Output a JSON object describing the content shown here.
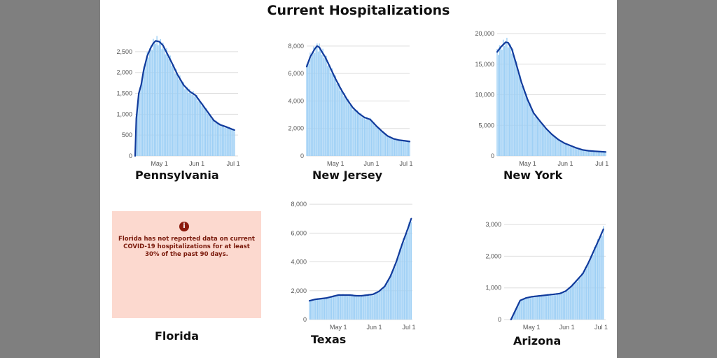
{
  "page": {
    "title": "Current Hospitalizations"
  },
  "notice": {
    "icon": "info-icon",
    "icon_glyph": "i",
    "text": "Florida has not reported data on current COVID-19 hospitalizations for at least 30% of the past 90 days.",
    "state": "Florida",
    "background": "#fcd9cf",
    "text_color": "#7a1a0c"
  },
  "colors": {
    "bar": "#9fd0f5",
    "line": "#113b9c",
    "grid": "#dddddd"
  },
  "chart_data": [
    {
      "type": "bar",
      "state": "Pennsylvania",
      "x_ticks": [
        {
          "day": 0,
          "label": "May 1"
        },
        {
          "day": 31,
          "label": "Jun 1"
        },
        {
          "day": 61,
          "label": "Jul 1"
        }
      ],
      "xlim": [
        -20,
        65
      ],
      "ylim": [
        0,
        2800
      ],
      "y_ticks": [
        0,
        500,
        1000,
        1500,
        2000,
        2500
      ],
      "tick_labels": [
        "0",
        "500",
        "1,000",
        "1,500",
        "2,000",
        "2,500"
      ],
      "series": [
        {
          "points": [
            [
              -20,
              0
            ],
            [
              -19,
              900
            ],
            [
              -17,
              1500
            ],
            [
              -15,
              1700
            ],
            [
              -13,
              2050
            ],
            [
              -10,
              2400
            ],
            [
              -7,
              2600
            ],
            [
              -5,
              2700
            ],
            [
              -3,
              2760
            ],
            [
              0,
              2740
            ],
            [
              3,
              2650
            ],
            [
              6,
              2480
            ],
            [
              10,
              2250
            ],
            [
              15,
              1950
            ],
            [
              20,
              1700
            ],
            [
              25,
              1550
            ],
            [
              30,
              1450
            ],
            [
              35,
              1250
            ],
            [
              40,
              1050
            ],
            [
              45,
              850
            ],
            [
              50,
              750
            ],
            [
              55,
              700
            ],
            [
              60,
              640
            ],
            [
              62,
              620
            ]
          ]
        }
      ]
    },
    {
      "type": "bar",
      "state": "New Jersey",
      "x_ticks": [
        {
          "day": 0,
          "label": "May 1"
        },
        {
          "day": 31,
          "label": "Jun 1"
        },
        {
          "day": 61,
          "label": "Jul 1"
        }
      ],
      "xlim": [
        -25,
        64
      ],
      "ylim": [
        0,
        8500
      ],
      "y_ticks": [
        0,
        2000,
        4000,
        6000,
        8000
      ],
      "tick_labels": [
        "0",
        "2,000",
        "4,000",
        "6,000",
        "8,000"
      ],
      "series": [
        {
          "points": [
            [
              -25,
              6500
            ],
            [
              -22,
              7200
            ],
            [
              -18,
              7800
            ],
            [
              -16,
              8000
            ],
            [
              -14,
              7900
            ],
            [
              -12,
              7600
            ],
            [
              -9,
              7200
            ],
            [
              -5,
              6500
            ],
            [
              0,
              5600
            ],
            [
              5,
              4800
            ],
            [
              10,
              4100
            ],
            [
              15,
              3500
            ],
            [
              20,
              3100
            ],
            [
              25,
              2800
            ],
            [
              30,
              2650
            ],
            [
              35,
              2200
            ],
            [
              40,
              1800
            ],
            [
              45,
              1450
            ],
            [
              50,
              1250
            ],
            [
              55,
              1150
            ],
            [
              60,
              1100
            ],
            [
              64,
              1050
            ]
          ]
        }
      ]
    },
    {
      "type": "bar",
      "state": "New York",
      "x_ticks": [
        {
          "day": 0,
          "label": "May 1"
        },
        {
          "day": 31,
          "label": "Jun 1"
        },
        {
          "day": 61,
          "label": "Jul 1"
        }
      ],
      "xlim": [
        -25,
        64
      ],
      "ylim": [
        0,
        20000
      ],
      "y_ticks": [
        0,
        5000,
        10000,
        15000,
        20000
      ],
      "tick_labels": [
        "0",
        "5,000",
        "10,000",
        "15,000",
        "20,000"
      ],
      "series": [
        {
          "points": [
            [
              -25,
              17000
            ],
            [
              -22,
              17800
            ],
            [
              -18,
              18600
            ],
            [
              -16,
              18500
            ],
            [
              -13,
              17500
            ],
            [
              -10,
              15500
            ],
            [
              -5,
              12000
            ],
            [
              0,
              9200
            ],
            [
              5,
              7000
            ],
            [
              10,
              5700
            ],
            [
              15,
              4500
            ],
            [
              20,
              3500
            ],
            [
              25,
              2700
            ],
            [
              30,
              2100
            ],
            [
              35,
              1700
            ],
            [
              40,
              1300
            ],
            [
              45,
              1000
            ],
            [
              50,
              850
            ],
            [
              55,
              760
            ],
            [
              60,
              700
            ],
            [
              64,
              650
            ]
          ]
        }
      ]
    },
    {
      "type": "bar",
      "state": "Texas",
      "x_ticks": [
        {
          "day": 0,
          "label": "May 1"
        },
        {
          "day": 31,
          "label": "Jun 1"
        },
        {
          "day": 61,
          "label": "Jul 1"
        }
      ],
      "xlim": [
        -25,
        64
      ],
      "ylim": [
        0,
        8200
      ],
      "y_ticks": [
        0,
        2000,
        4000,
        6000,
        8000
      ],
      "tick_labels": [
        "0",
        "2,000",
        "4,000",
        "6,000",
        "8,000"
      ],
      "series": [
        {
          "points": [
            [
              -25,
              1300
            ],
            [
              -20,
              1400
            ],
            [
              -15,
              1450
            ],
            [
              -10,
              1500
            ],
            [
              -5,
              1600
            ],
            [
              0,
              1700
            ],
            [
              5,
              1700
            ],
            [
              10,
              1700
            ],
            [
              15,
              1650
            ],
            [
              20,
              1650
            ],
            [
              25,
              1700
            ],
            [
              30,
              1750
            ],
            [
              35,
              1950
            ],
            [
              40,
              2300
            ],
            [
              45,
              3000
            ],
            [
              50,
              4000
            ],
            [
              55,
              5200
            ],
            [
              60,
              6300
            ],
            [
              63,
              7000
            ]
          ]
        }
      ]
    },
    {
      "type": "bar",
      "state": "Arizona",
      "x_ticks": [
        {
          "day": 0,
          "label": "May 1"
        },
        {
          "day": 31,
          "label": "Jun 1"
        },
        {
          "day": 61,
          "label": "Jul 1"
        }
      ],
      "xlim": [
        -24,
        65
      ],
      "ylim": [
        0,
        3200
      ],
      "y_ticks": [
        0,
        1000,
        2000,
        3000
      ],
      "tick_labels": [
        "0",
        "1,000",
        "2,000",
        "3,000"
      ],
      "series": [
        {
          "points": [
            [
              -18,
              0
            ],
            [
              -14,
              300
            ],
            [
              -10,
              600
            ],
            [
              -5,
              680
            ],
            [
              0,
              720
            ],
            [
              5,
              740
            ],
            [
              10,
              760
            ],
            [
              15,
              780
            ],
            [
              20,
              800
            ],
            [
              25,
              820
            ],
            [
              30,
              900
            ],
            [
              35,
              1050
            ],
            [
              40,
              1250
            ],
            [
              45,
              1450
            ],
            [
              50,
              1800
            ],
            [
              55,
              2200
            ],
            [
              60,
              2600
            ],
            [
              63,
              2850
            ]
          ]
        }
      ]
    }
  ]
}
